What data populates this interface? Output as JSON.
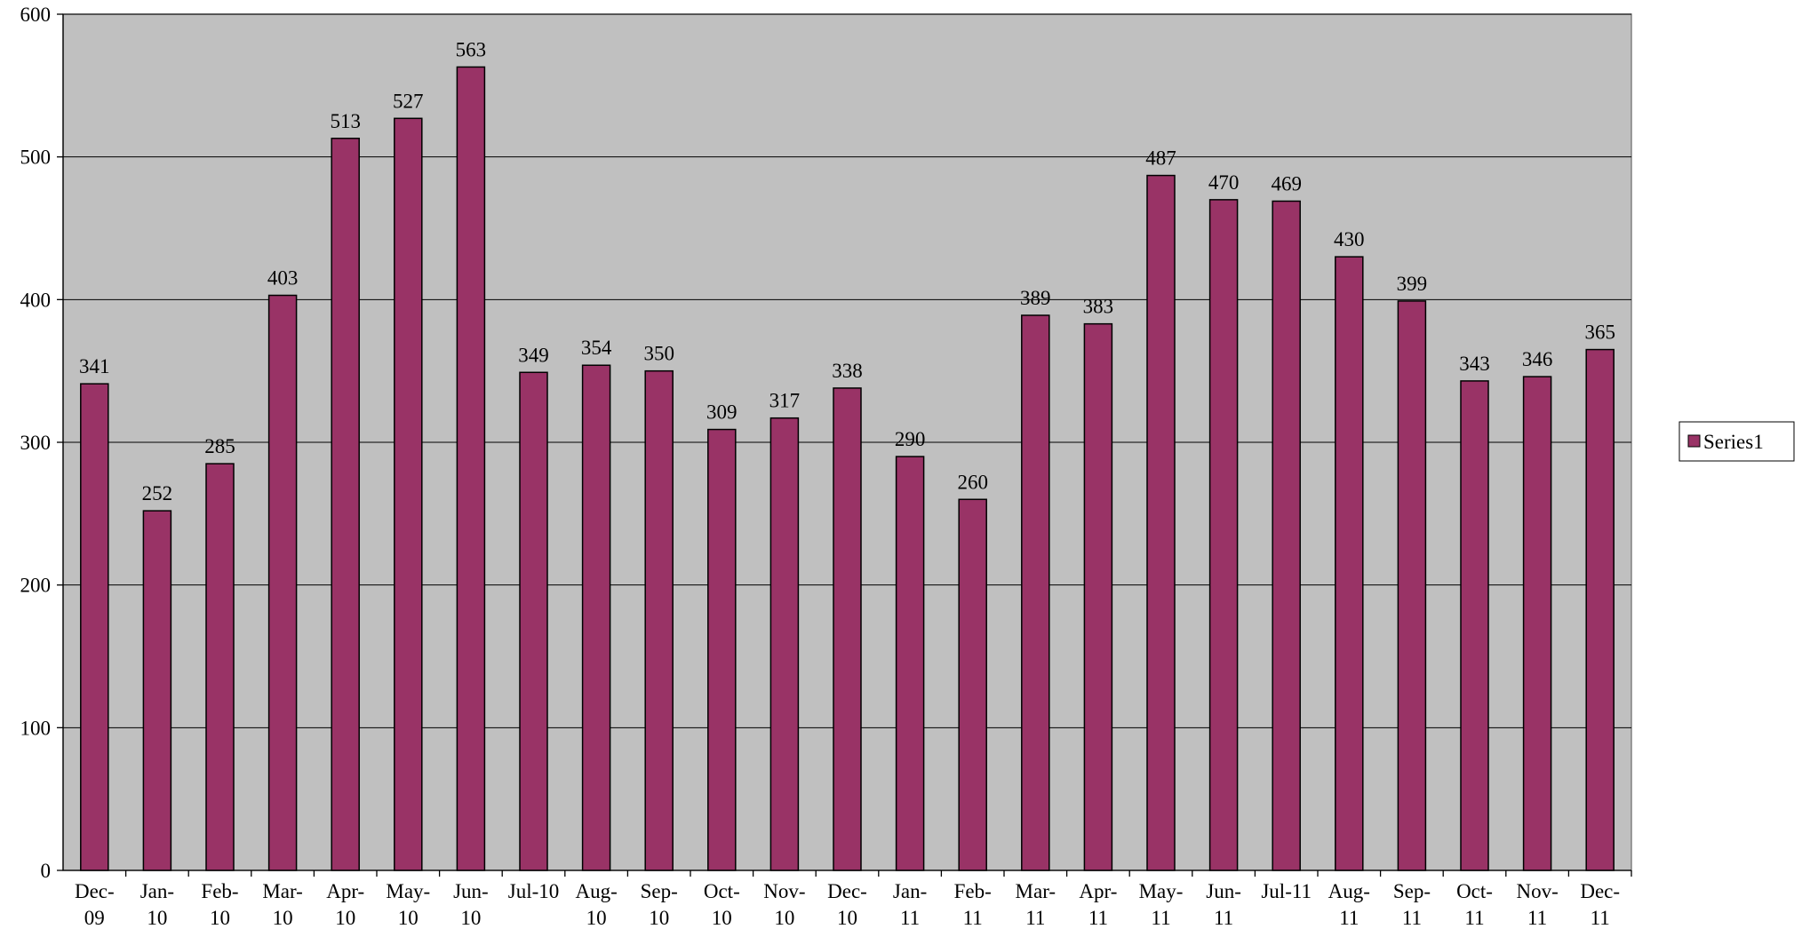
{
  "chart_data": {
    "type": "bar",
    "categories": [
      "Dec-09",
      "Jan-10",
      "Feb-10",
      "Mar-10",
      "Apr-10",
      "May-10",
      "Jun-10",
      "Jul-10",
      "Aug-10",
      "Sep-10",
      "Oct-10",
      "Nov-10",
      "Dec-10",
      "Jan-11",
      "Feb-11",
      "Mar-11",
      "Apr-11",
      "May-11",
      "Jun-11",
      "Jul-11",
      "Aug-11",
      "Sep-11",
      "Oct-11",
      "Nov-11",
      "Dec-11"
    ],
    "series": [
      {
        "name": "Series1",
        "color": "#993366",
        "values": [
          341,
          252,
          285,
          403,
          513,
          527,
          563,
          349,
          354,
          350,
          309,
          317,
          338,
          290,
          260,
          389,
          383,
          487,
          470,
          469,
          430,
          399,
          343,
          346,
          365
        ]
      }
    ],
    "ylim": [
      0,
      600
    ],
    "yticks": [
      0,
      100,
      200,
      300,
      400,
      500,
      600
    ],
    "grid": true,
    "legend": "right"
  }
}
